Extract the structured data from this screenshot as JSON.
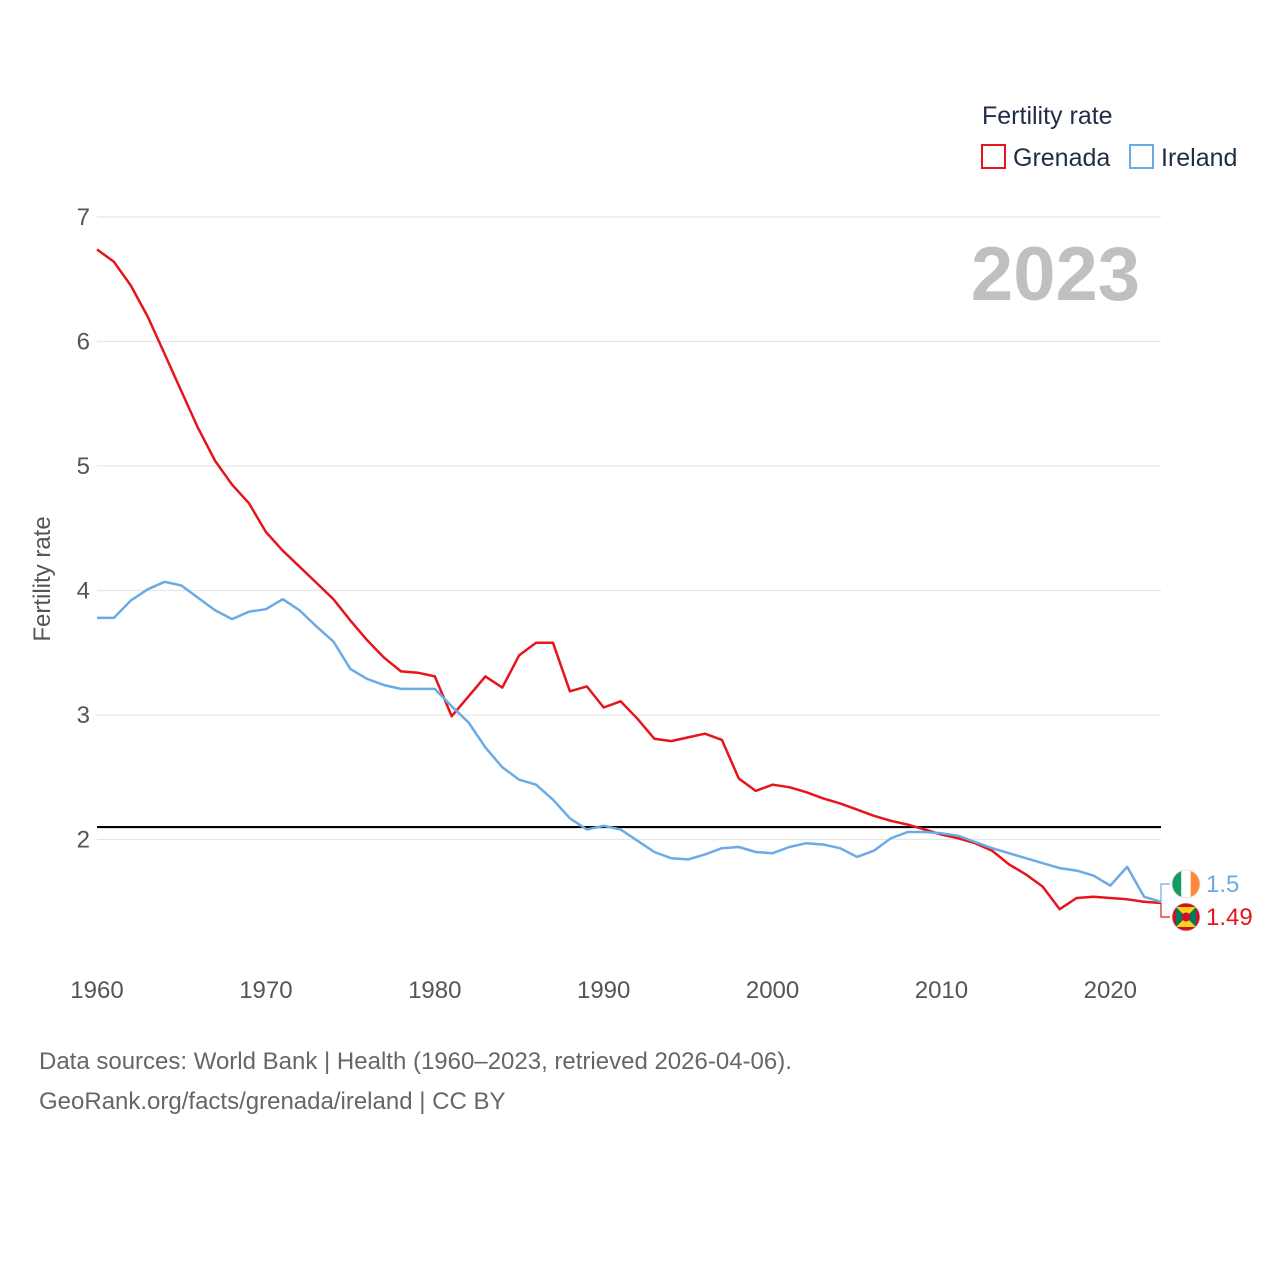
{
  "chart_data": {
    "type": "line",
    "ylabel": "Fertility rate",
    "legend_title": "Fertility rate",
    "legend_position": "top-right",
    "year_label": "2023",
    "xlim": [
      1960,
      2023
    ],
    "ylim": [
      1.0,
      7.0
    ],
    "y_ticks": [
      2,
      3,
      4,
      5,
      6,
      7
    ],
    "x_ticks": [
      1960,
      1970,
      1980,
      1990,
      2000,
      2010,
      2020
    ],
    "reference_line": 2.1,
    "grid": true,
    "x": [
      1960,
      1961,
      1962,
      1963,
      1964,
      1965,
      1966,
      1967,
      1968,
      1969,
      1970,
      1971,
      1972,
      1973,
      1974,
      1975,
      1976,
      1977,
      1978,
      1979,
      1980,
      1981,
      1982,
      1983,
      1984,
      1985,
      1986,
      1987,
      1988,
      1989,
      1990,
      1991,
      1992,
      1993,
      1994,
      1995,
      1996,
      1997,
      1998,
      1999,
      2000,
      2001,
      2002,
      2003,
      2004,
      2005,
      2006,
      2007,
      2008,
      2009,
      2010,
      2011,
      2012,
      2013,
      2014,
      2015,
      2016,
      2017,
      2018,
      2019,
      2020,
      2021,
      2022,
      2023
    ],
    "series": [
      {
        "name": "Grenada",
        "color": "#e8141c",
        "end_label": "1.49",
        "flag": "grenada-flag",
        "values": [
          6.74,
          6.64,
          6.45,
          6.2,
          5.9,
          5.6,
          5.3,
          5.04,
          4.85,
          4.7,
          4.47,
          4.32,
          4.19,
          4.06,
          3.93,
          3.76,
          3.6,
          3.46,
          3.35,
          3.34,
          3.31,
          2.99,
          3.15,
          3.31,
          3.22,
          3.48,
          3.58,
          3.58,
          3.19,
          3.23,
          3.06,
          3.11,
          2.97,
          2.81,
          2.79,
          2.82,
          2.85,
          2.8,
          2.49,
          2.39,
          2.44,
          2.42,
          2.38,
          2.33,
          2.29,
          2.24,
          2.19,
          2.15,
          2.12,
          2.08,
          2.04,
          2.01,
          1.97,
          1.91,
          1.8,
          1.72,
          1.62,
          1.44,
          1.53,
          1.54,
          1.53,
          1.52,
          1.5,
          1.49
        ]
      },
      {
        "name": "Ireland",
        "color": "#6aabe6",
        "end_label": "1.5",
        "flag": "ireland-flag",
        "values": [
          3.78,
          3.78,
          3.92,
          4.01,
          4.07,
          4.04,
          3.94,
          3.84,
          3.77,
          3.83,
          3.85,
          3.93,
          3.84,
          3.71,
          3.59,
          3.37,
          3.29,
          3.24,
          3.21,
          3.21,
          3.21,
          3.07,
          2.94,
          2.74,
          2.58,
          2.48,
          2.44,
          2.32,
          2.17,
          2.08,
          2.11,
          2.08,
          1.99,
          1.9,
          1.85,
          1.84,
          1.88,
          1.93,
          1.94,
          1.9,
          1.89,
          1.94,
          1.97,
          1.96,
          1.93,
          1.86,
          1.91,
          2.01,
          2.06,
          2.06,
          2.05,
          2.03,
          1.98,
          1.93,
          1.89,
          1.85,
          1.81,
          1.77,
          1.75,
          1.71,
          1.63,
          1.78,
          1.54,
          1.5
        ]
      }
    ]
  },
  "footer": {
    "line1": "Data sources: World Bank | Health (1960–2023, retrieved 2026-04-06).",
    "line2": "GeoRank.org/facts/grenada/ireland | CC BY"
  }
}
